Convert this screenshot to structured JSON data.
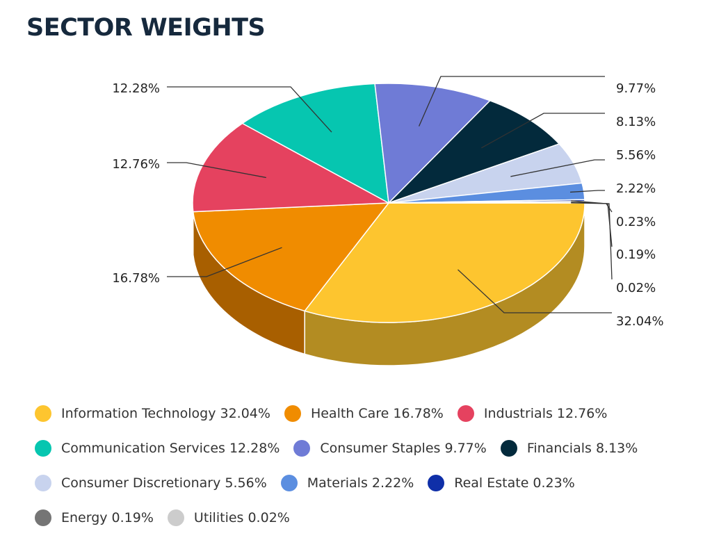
{
  "chart_data": {
    "type": "pie",
    "variant": "3d",
    "title": "SECTOR WEIGHTS",
    "unit": "%",
    "legend_placement": "bottom",
    "slices": [
      {
        "name": "Information Technology",
        "value": 32.04,
        "label": "32.04%",
        "legend": "Information Technology 32.04%",
        "color": "#fdc52f",
        "side_color": "#b38c22"
      },
      {
        "name": "Health Care",
        "value": 16.78,
        "label": "16.78%",
        "legend": "Health Care 16.78%",
        "color": "#f08c00",
        "side_color": "#a85f00"
      },
      {
        "name": "Industrials",
        "value": 12.76,
        "label": "12.76%",
        "legend": "Industrials 12.76%",
        "color": "#e5425f",
        "side_color": "#a02e43"
      },
      {
        "name": "Communication Services",
        "value": 12.28,
        "label": "12.28%",
        "legend": "Communication Services 12.28%",
        "color": "#06c6b0",
        "side_color": "#048a7b"
      },
      {
        "name": "Consumer Staples",
        "value": 9.77,
        "label": "9.77%",
        "legend": "Consumer Staples 9.77%",
        "color": "#6f7bd6",
        "side_color": "#4e5696"
      },
      {
        "name": "Financials",
        "value": 8.13,
        "label": "8.13%",
        "legend": "Financials 8.13%",
        "color": "#032a3c",
        "side_color": "#021d2a"
      },
      {
        "name": "Consumer Discretionary",
        "value": 5.56,
        "label": "5.56%",
        "legend": "Consumer Discretionary 5.56%",
        "color": "#c8d3ee",
        "side_color": "#8c94a7"
      },
      {
        "name": "Materials",
        "value": 2.22,
        "label": "2.22%",
        "legend": "Materials 2.22%",
        "color": "#5b8ee0",
        "side_color": "#40639d"
      },
      {
        "name": "Real Estate",
        "value": 0.23,
        "label": "0.23%",
        "legend": "Real Estate 0.23%",
        "color": "#0f2fa8",
        "side_color": "#0a2176"
      },
      {
        "name": "Energy",
        "value": 0.19,
        "label": "0.19%",
        "legend": "Energy 0.19%",
        "color": "#757575",
        "side_color": "#525252"
      },
      {
        "name": "Utilities",
        "value": 0.02,
        "label": "0.02%",
        "legend": "Utilities 0.02%",
        "color": "#cccccc",
        "side_color": "#8f8f8f"
      }
    ]
  }
}
